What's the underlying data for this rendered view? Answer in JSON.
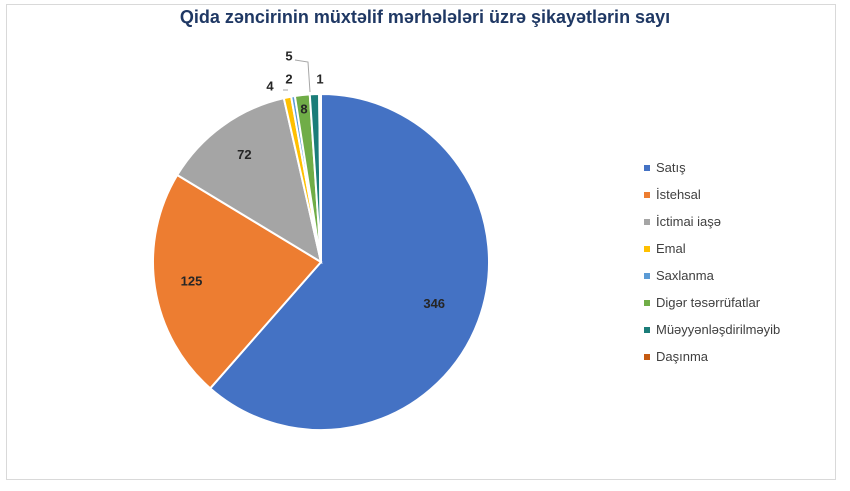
{
  "chart_data": {
    "type": "pie",
    "title": "Qida zəncirinin müxtəlif mərhələləri üzrə şikayətlərin sayı",
    "start_angle_deg": 0,
    "direction": "clockwise",
    "legend_position": "right",
    "slices": [
      {
        "label": "Satış",
        "value": 346,
        "color": "#4472c4",
        "label_shown": "346"
      },
      {
        "label": "İstehsal",
        "value": 125,
        "color": "#ed7d31",
        "label_shown": "125"
      },
      {
        "label": "İctimai iaşə",
        "value": 72,
        "color": "#a5a5a5",
        "label_shown": "72"
      },
      {
        "label": "Emal",
        "value": 4,
        "color": "#ffc000",
        "label_shown": "4"
      },
      {
        "label": "Saxlanma",
        "value": 2,
        "color": "#5b9bd5",
        "label_shown": "2"
      },
      {
        "label": "Digər təsərrüfatlar",
        "value": 8,
        "color": "#70ad47",
        "label_shown": "8"
      },
      {
        "label": "Müəyyənləşdirilməyib",
        "value": 5,
        "color": "#1b7d79",
        "label_shown": "5"
      },
      {
        "label": "Daşınma",
        "value": 1,
        "color": "#c55a11",
        "label_shown": "1"
      }
    ]
  }
}
